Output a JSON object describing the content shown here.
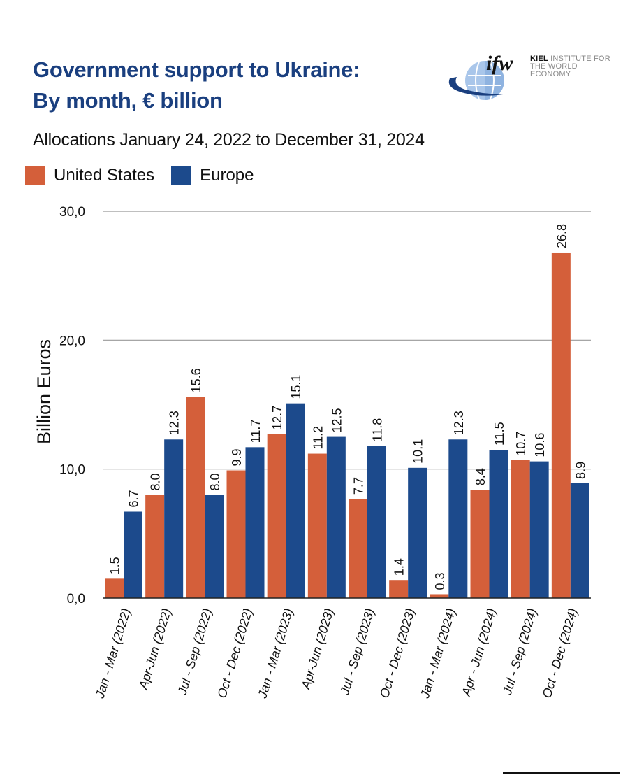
{
  "title_line1": "Government support to Ukraine:",
  "title_line2": "By month, € billion",
  "subtitle": "Allocations January 24, 2022 to December 31, 2024",
  "logo": {
    "mark": "ifw",
    "name_bold": "KIEL",
    "name_rest": "INSTITUTE FOR",
    "name_line2": "THE WORLD ECONOMY"
  },
  "chart_data": {
    "type": "bar",
    "title": "Government support to Ukraine: By month, € billion",
    "ylabel": "Billion Euros",
    "xlabel": "",
    "ylim": [
      0,
      30
    ],
    "yticks": [
      0,
      10,
      20,
      30
    ],
    "ytick_labels": [
      "0,0",
      "10,0",
      "20,0",
      "30,0"
    ],
    "grid": true,
    "legend_position": "top-left",
    "categories": [
      "Jan - Mar (2022)",
      "Apr-Jun (2022)",
      "Jul - Sep (2022)",
      "Oct - Dec (2022)",
      "Jan - Mar (2023)",
      "Apr-Jun (2023)",
      "Jul - Sep (2023)",
      "Oct - Dec (2023)",
      "Jan - Mar (2024)",
      "Apr - Jun (2024)",
      "Jul - Sep (2024)",
      "Oct - Dec (2024)"
    ],
    "series": [
      {
        "name": "United States",
        "color": "#d45f3a",
        "values": [
          1.5,
          8.0,
          15.6,
          9.9,
          12.7,
          11.2,
          7.7,
          1.4,
          0.3,
          8.4,
          10.7,
          26.8
        ]
      },
      {
        "name": "Europe",
        "color": "#1c4a8c",
        "values": [
          6.7,
          12.3,
          8.0,
          11.7,
          15.1,
          12.5,
          11.8,
          10.1,
          12.3,
          11.5,
          10.6,
          8.9
        ]
      }
    ]
  }
}
